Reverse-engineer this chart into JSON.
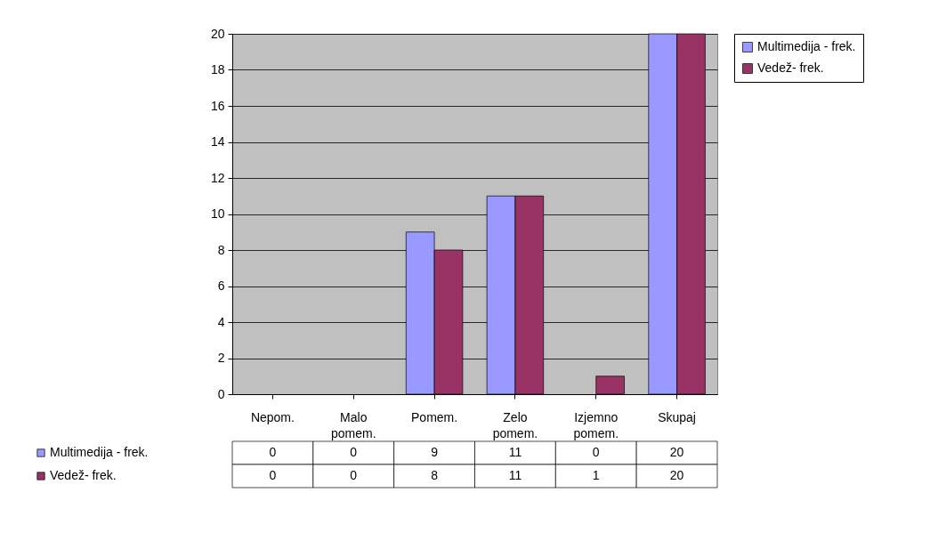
{
  "chart_data": {
    "type": "bar",
    "categories": [
      "Nepom.",
      "Malo pomem.",
      "Pomem.",
      "Zelo pomem.",
      "Izjemno pomem.",
      "Skupaj"
    ],
    "series": [
      {
        "name": "Multimedija - frek.",
        "color": "#9999ff",
        "values": [
          0,
          0,
          9,
          11,
          0,
          20
        ]
      },
      {
        "name": "Vedež- frek.",
        "color": "#993366",
        "values": [
          0,
          0,
          8,
          11,
          1,
          20
        ]
      }
    ],
    "ylim": [
      0,
      20
    ],
    "yticks": [
      0,
      2,
      4,
      6,
      8,
      10,
      12,
      14,
      16,
      18,
      20
    ],
    "grid": "y",
    "legend": "right",
    "data_labels": true
  }
}
